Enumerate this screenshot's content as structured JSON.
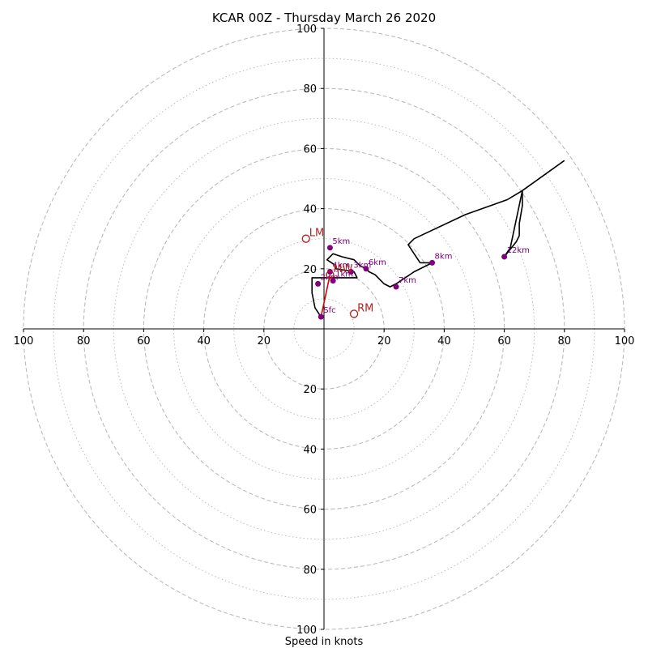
{
  "chart_data": {
    "type": "hodograph",
    "title": "KCAR 00Z - Thursday March 26 2020",
    "xlabel": "Speed in knots",
    "range": [
      -100,
      100
    ],
    "tick_labels": {
      "x": [
        "100",
        "80",
        "60",
        "40",
        "20",
        "20",
        "40",
        "60",
        "80",
        "100"
      ],
      "y": [
        "100",
        "80",
        "60",
        "40",
        "20",
        "20",
        "40",
        "60",
        "80",
        "100"
      ]
    },
    "ticks": {
      "x": [
        -100,
        -80,
        -60,
        -40,
        -20,
        20,
        40,
        60,
        80,
        100
      ],
      "y": [
        100,
        80,
        60,
        40,
        20,
        -20,
        -40,
        -60,
        -80,
        -100
      ]
    },
    "rings": {
      "dashed": [
        20,
        40,
        60,
        80,
        100
      ],
      "dotted": [
        10,
        30,
        50,
        70,
        90
      ]
    },
    "colors": {
      "trace": "#000000",
      "grid": "#bbbbbb",
      "height_marker": "#800080",
      "motion": "#b22222",
      "shear_vector": "#dd0000"
    },
    "hodograph_trace": {
      "u": [
        -1,
        -3,
        -4,
        -4,
        0,
        5,
        11,
        10,
        4,
        4,
        1,
        3,
        6,
        10,
        12,
        14,
        15,
        17,
        20,
        22,
        24,
        27,
        30,
        34,
        36,
        32,
        30,
        28,
        30,
        47,
        61,
        66,
        66,
        65,
        65,
        64,
        60,
        62,
        66,
        80
      ],
      "v": [
        4,
        7,
        12,
        17,
        17,
        17,
        17,
        19,
        20,
        21,
        23,
        25,
        24,
        23,
        21,
        20,
        19,
        18,
        15,
        14,
        15,
        17,
        19,
        21,
        22,
        22,
        25,
        28,
        30,
        38,
        43,
        46,
        41,
        35,
        31,
        29,
        24,
        27,
        46,
        56
      ]
    },
    "height_markers": [
      {
        "label": "Sfc",
        "u": -1,
        "v": 4
      },
      {
        "label": "1km",
        "u": 3,
        "v": 16
      },
      {
        "label": "2km",
        "u": -2,
        "v": 15
      },
      {
        "label": "3km",
        "u": 9,
        "v": 19
      },
      {
        "label": "4km",
        "u": 2,
        "v": 19
      },
      {
        "label": "5km",
        "u": 2,
        "v": 27
      },
      {
        "label": "6km",
        "u": 14,
        "v": 20
      },
      {
        "label": "7km",
        "u": 24,
        "v": 14
      },
      {
        "label": "8km",
        "u": 36,
        "v": 22
      },
      {
        "label": "12km",
        "u": 60,
        "v": 24
      }
    ],
    "storm_motion": [
      {
        "label": "LM",
        "u": -6,
        "v": 30
      },
      {
        "label": "RM",
        "u": 10,
        "v": 5
      },
      {
        "label": "MW",
        "u": 2,
        "v": 18
      }
    ],
    "shear_vector": {
      "from": {
        "u": -1,
        "v": 4
      },
      "to": {
        "u": 2,
        "v": 18
      }
    }
  }
}
